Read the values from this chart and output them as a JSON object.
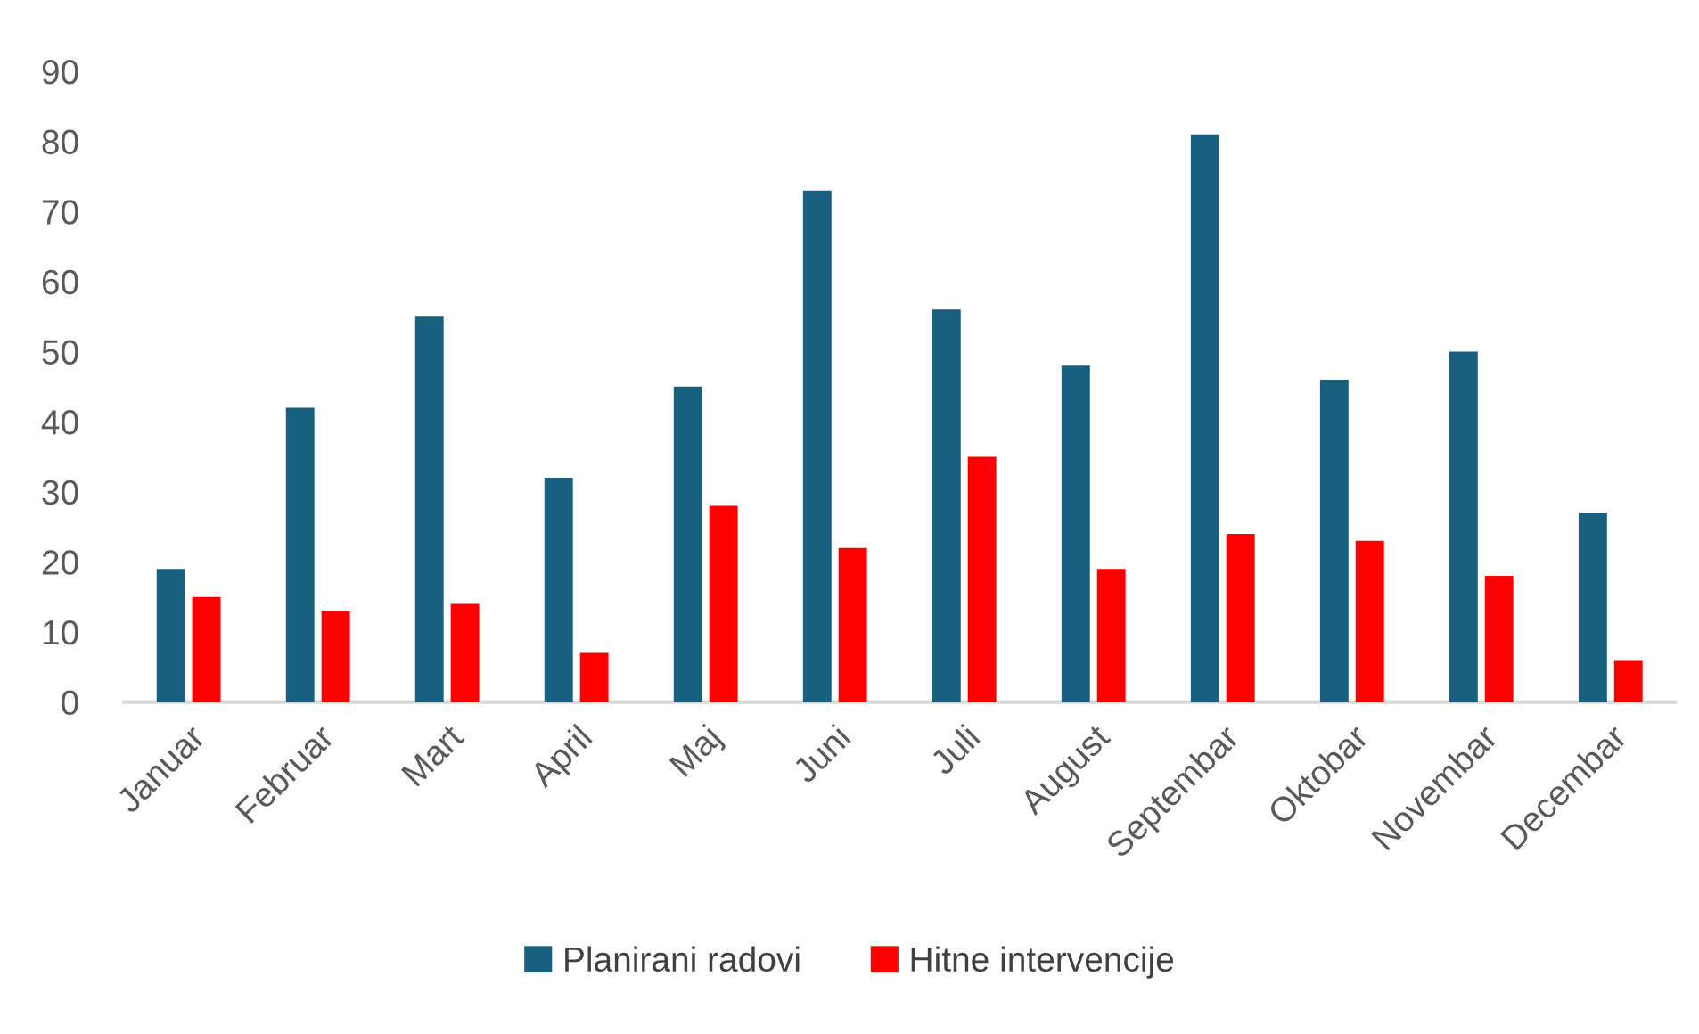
{
  "chart_data": {
    "type": "bar",
    "categories": [
      "Januar",
      "Februar",
      "Mart",
      "April",
      "Maj",
      "Juni",
      "Juli",
      "August",
      "Septembar",
      "Oktobar",
      "Novembar",
      "Decembar"
    ],
    "series": [
      {
        "name": "Planirani radovi",
        "color": "#17607f",
        "values": [
          19,
          42,
          55,
          32,
          45,
          73,
          56,
          48,
          81,
          46,
          50,
          27
        ]
      },
      {
        "name": "Hitne intervencije",
        "color": "#ff0000",
        "values": [
          15,
          13,
          14,
          7,
          28,
          22,
          35,
          19,
          24,
          23,
          18,
          6
        ]
      }
    ],
    "ylim": [
      0,
      90
    ],
    "yticks": [
      0,
      10,
      20,
      30,
      40,
      50,
      60,
      70,
      80,
      90
    ],
    "grid": false,
    "legend": "bottom"
  }
}
